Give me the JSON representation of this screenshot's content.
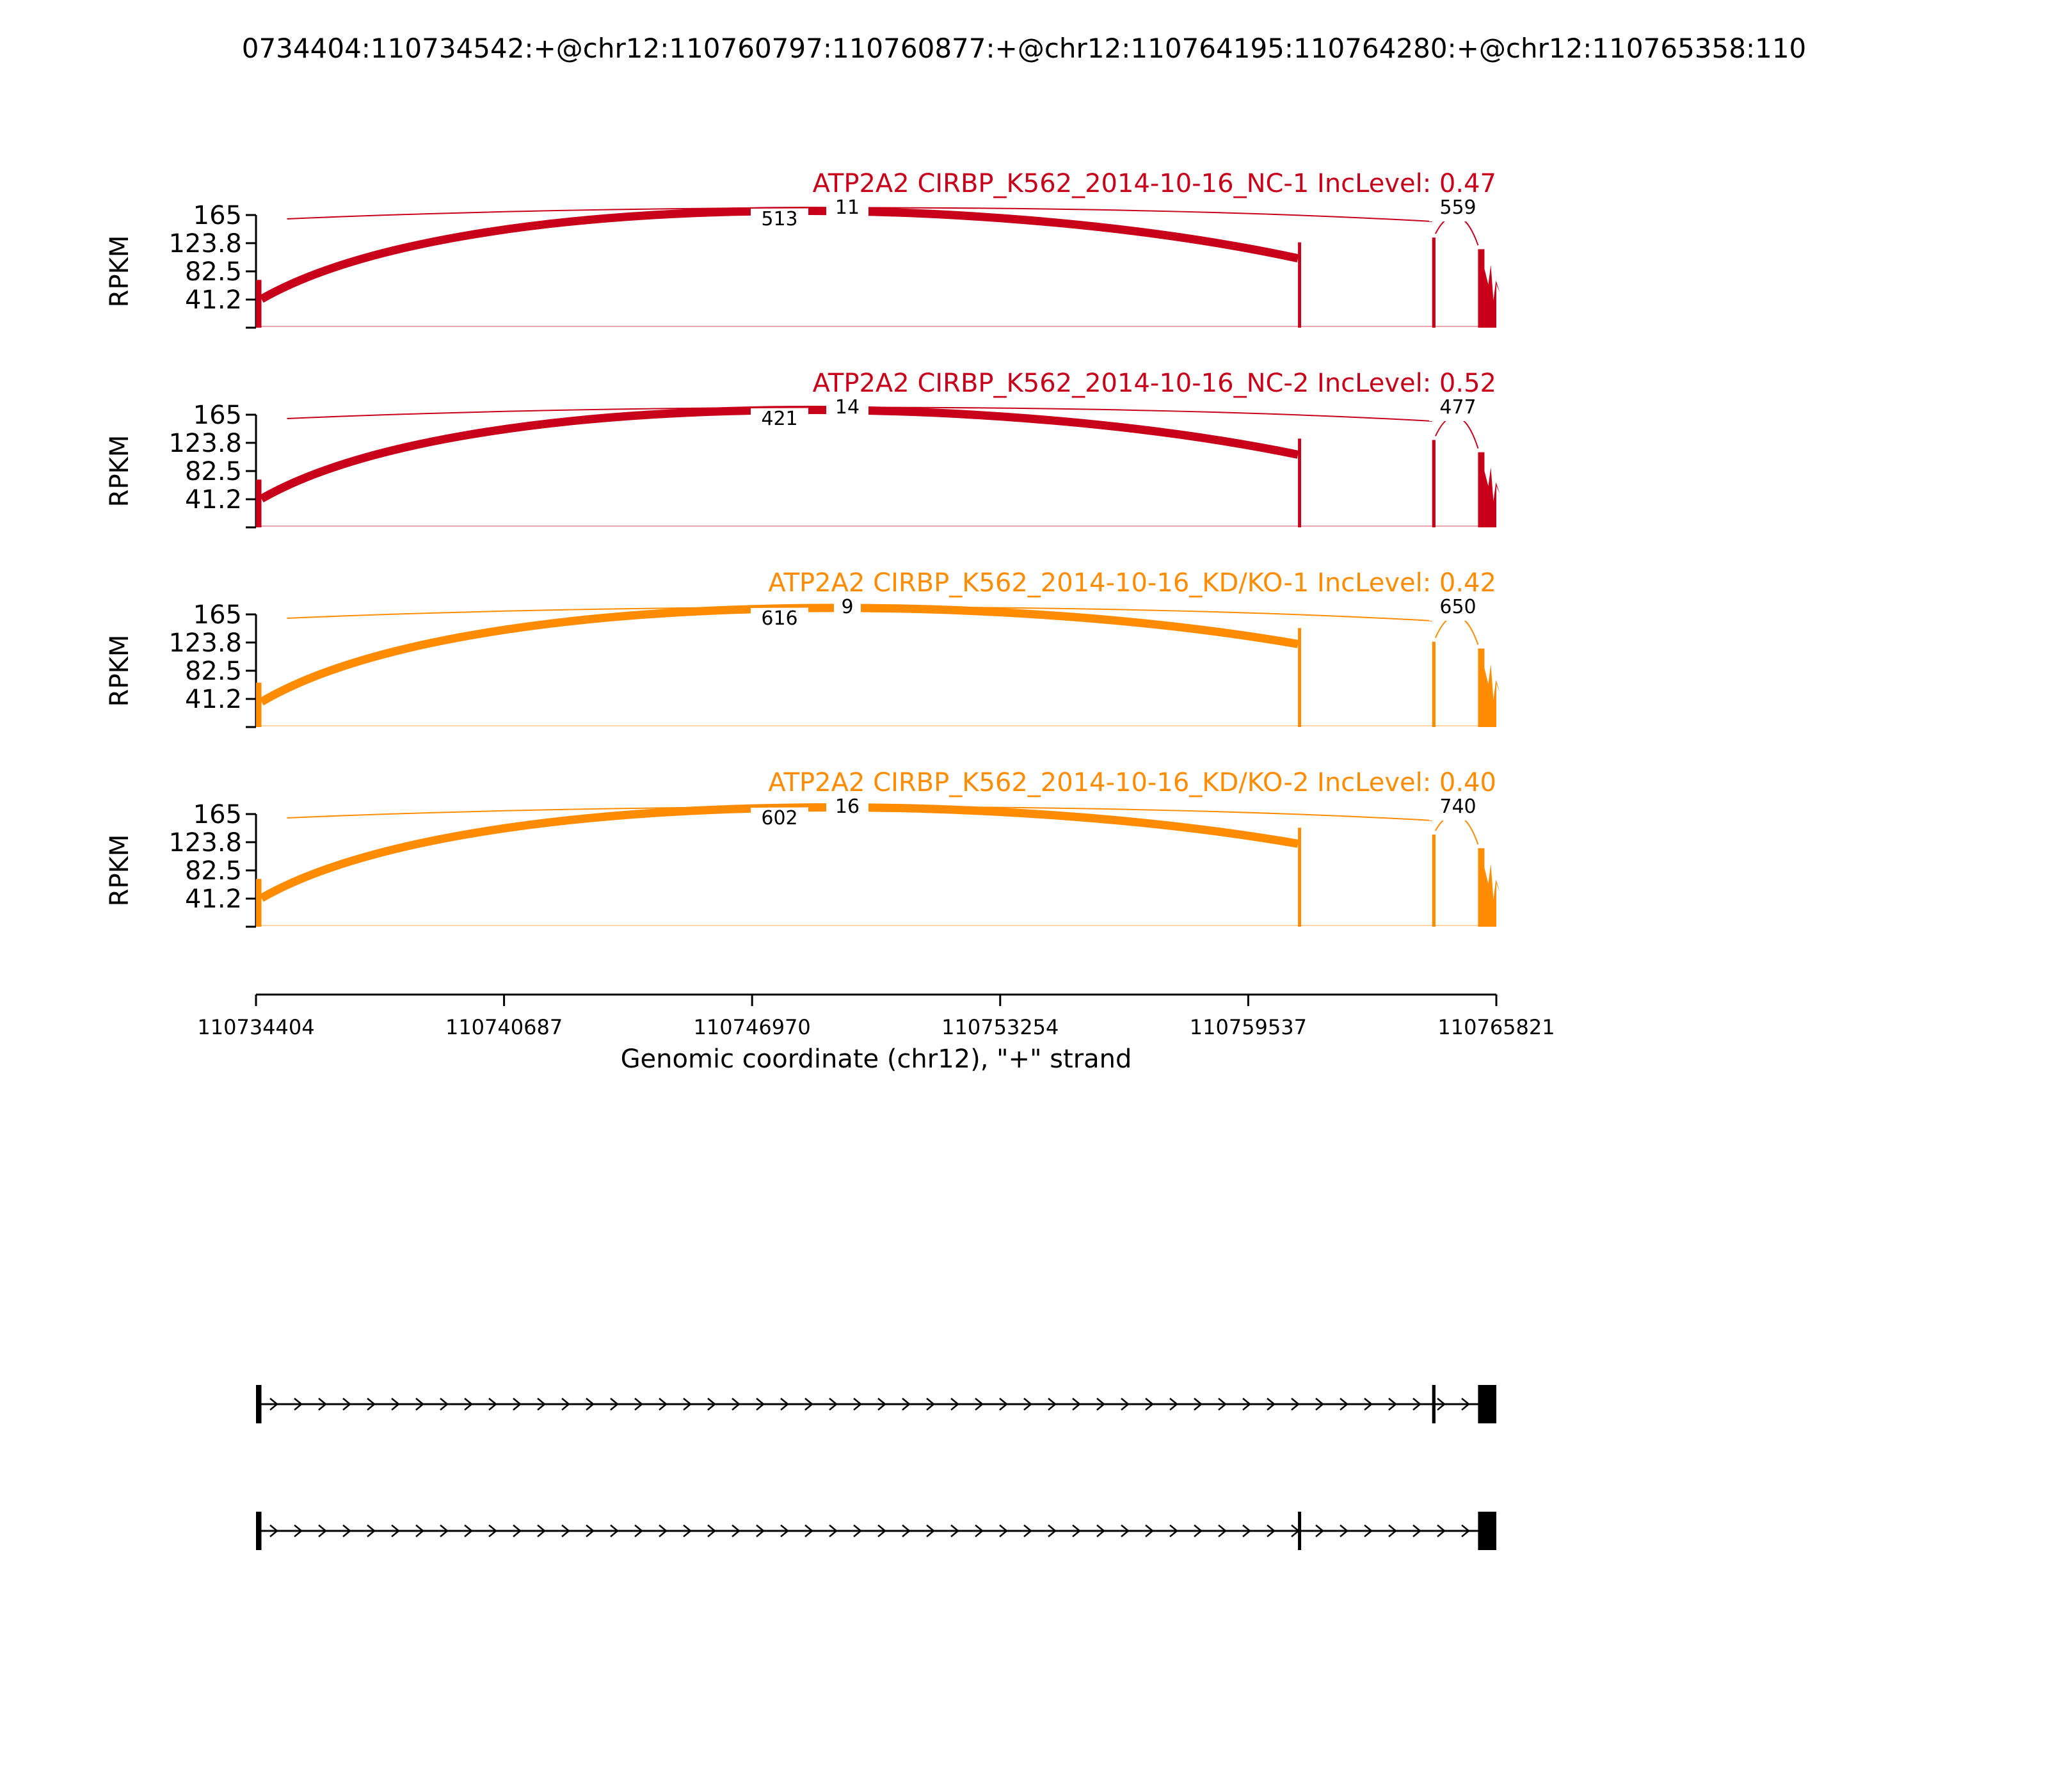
{
  "title": "0734404:110734542:+@chr12:110760797:110760877:+@chr12:110764195:110764280:+@chr12:110765358:110",
  "colors": {
    "control": "#c8001a",
    "knockdown": "#ff8c00",
    "axis": "#000000"
  },
  "chart_data": {
    "type": "area",
    "xlabel": "Genomic coordinate (chr12), \"+\" strand",
    "ylabel": "RPKM",
    "ylim": [
      0,
      165
    ],
    "yticks": [
      "165",
      "123.8",
      "82.5",
      "41.2"
    ],
    "xlim": [
      110734404,
      110765821
    ],
    "xticks": [
      "110734404",
      "110740687",
      "110746970",
      "110753254",
      "110759537",
      "110765821"
    ],
    "exons": [
      {
        "start": 110734404,
        "end": 110734542
      },
      {
        "start": 110760797,
        "end": 110760877
      },
      {
        "start": 110764195,
        "end": 110764280
      },
      {
        "start": 110765358,
        "end": 110765821
      }
    ],
    "tracks": [
      {
        "name": "ATP2A2 CIRBP_K562_2014-10-16_NC-1 IncLevel: 0.47",
        "group": "control",
        "exon_levels": [
          70,
          125,
          132,
          115
        ],
        "junctions": [
          {
            "label": "513",
            "kind": "long",
            "thick": true
          },
          {
            "label": "11",
            "kind": "skip",
            "thick": false
          },
          {
            "label": "559",
            "kind": "short",
            "thick": false
          }
        ]
      },
      {
        "name": "ATP2A2 CIRBP_K562_2014-10-16_NC-2 IncLevel: 0.52",
        "group": "control",
        "exon_levels": [
          70,
          130,
          128,
          110
        ],
        "junctions": [
          {
            "label": "421",
            "kind": "long",
            "thick": true
          },
          {
            "label": "14",
            "kind": "skip",
            "thick": false
          },
          {
            "label": "477",
            "kind": "short",
            "thick": false
          }
        ]
      },
      {
        "name": "ATP2A2 CIRBP_K562_2014-10-16_KD/KO-1 IncLevel: 0.42",
        "group": "knockdown",
        "exon_levels": [
          65,
          145,
          125,
          115
        ],
        "junctions": [
          {
            "label": "616",
            "kind": "long",
            "thick": true
          },
          {
            "label": "9",
            "kind": "skip",
            "thick": false
          },
          {
            "label": "650",
            "kind": "short",
            "thick": false
          }
        ]
      },
      {
        "name": "ATP2A2 CIRBP_K562_2014-10-16_KD/KO-2 IncLevel: 0.40",
        "group": "knockdown",
        "exon_levels": [
          70,
          145,
          135,
          115
        ],
        "junctions": [
          {
            "label": "602",
            "kind": "long",
            "thick": true
          },
          {
            "label": "16",
            "kind": "skip",
            "thick": false
          },
          {
            "label": "740",
            "kind": "short",
            "thick": false
          }
        ]
      }
    ],
    "isoforms": [
      {
        "exon_indices": [
          0,
          2,
          3
        ]
      },
      {
        "exon_indices": [
          0,
          1,
          3
        ]
      }
    ]
  }
}
